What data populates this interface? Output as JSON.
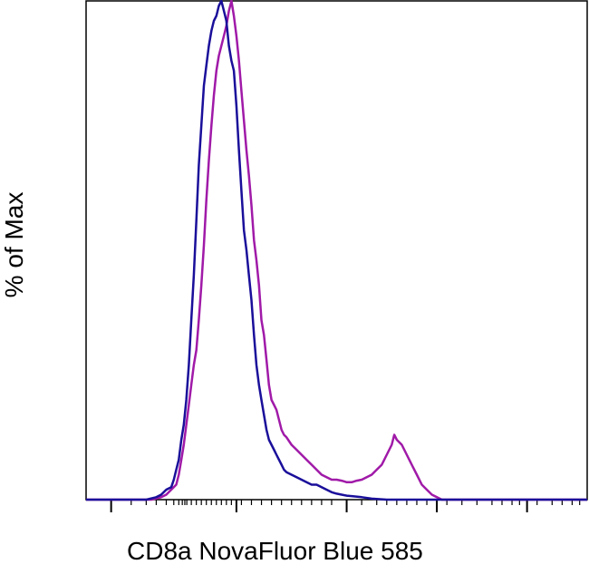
{
  "chart_data": {
    "type": "line",
    "title": "",
    "xlabel": "CD8a NovaFluor Blue 585",
    "ylabel": "% of Max",
    "x_scale": "log (biexponential)",
    "xlim": [
      0,
      100
    ],
    "ylim": [
      0,
      100
    ],
    "grid": false,
    "legend": "none",
    "series": [
      {
        "color": "#1a0f9a",
        "points": [
          [
            0,
            0
          ],
          [
            12,
            0
          ],
          [
            14,
            0.5
          ],
          [
            15,
            1
          ],
          [
            16,
            2
          ],
          [
            17,
            2.5
          ],
          [
            17.5,
            4
          ],
          [
            18,
            6
          ],
          [
            18.5,
            8
          ],
          [
            19,
            12
          ],
          [
            19.5,
            15
          ],
          [
            20,
            20
          ],
          [
            20.5,
            27
          ],
          [
            21,
            36
          ],
          [
            21.5,
            45
          ],
          [
            22,
            56
          ],
          [
            22.5,
            67
          ],
          [
            23,
            75
          ],
          [
            23.5,
            83
          ],
          [
            24,
            87
          ],
          [
            24.5,
            91
          ],
          [
            25,
            94
          ],
          [
            25.5,
            96
          ],
          [
            26,
            97
          ],
          [
            26.5,
            99
          ],
          [
            27,
            100
          ],
          [
            27.5,
            98
          ],
          [
            28,
            96
          ],
          [
            28.5,
            91
          ],
          [
            29,
            88
          ],
          [
            29.5,
            86
          ],
          [
            30,
            79
          ],
          [
            30.5,
            70
          ],
          [
            31,
            62
          ],
          [
            31.5,
            54
          ],
          [
            32,
            50
          ],
          [
            32.5,
            45
          ],
          [
            33,
            40
          ],
          [
            33.5,
            33
          ],
          [
            34,
            27
          ],
          [
            34.5,
            23
          ],
          [
            35,
            20
          ],
          [
            35.5,
            17
          ],
          [
            36,
            14
          ],
          [
            36.5,
            12
          ],
          [
            37,
            11
          ],
          [
            37.5,
            10
          ],
          [
            38,
            9
          ],
          [
            38.5,
            8
          ],
          [
            39,
            7
          ],
          [
            39.5,
            6
          ],
          [
            40,
            5.5
          ],
          [
            41,
            5
          ],
          [
            42,
            4.5
          ],
          [
            43,
            4
          ],
          [
            44,
            3.5
          ],
          [
            45,
            3
          ],
          [
            46,
            3
          ],
          [
            47,
            2.5
          ],
          [
            48,
            2
          ],
          [
            49,
            1.5
          ],
          [
            50,
            1.2
          ],
          [
            51,
            1
          ],
          [
            52,
            0.8
          ],
          [
            53,
            0.7
          ],
          [
            55,
            0.5
          ],
          [
            57,
            0.2
          ],
          [
            60,
            0
          ],
          [
            100,
            0
          ]
        ]
      },
      {
        "color": "#a01aa8",
        "points": [
          [
            0,
            0
          ],
          [
            13,
            0
          ],
          [
            15,
            0.5
          ],
          [
            16,
            1
          ],
          [
            17,
            2
          ],
          [
            18,
            3
          ],
          [
            18.5,
            5
          ],
          [
            19,
            8
          ],
          [
            19.5,
            11
          ],
          [
            20,
            15
          ],
          [
            20.5,
            19
          ],
          [
            21,
            23
          ],
          [
            21.5,
            27
          ],
          [
            22,
            30
          ],
          [
            22.5,
            36
          ],
          [
            23,
            43
          ],
          [
            23.5,
            51
          ],
          [
            24,
            60
          ],
          [
            24.5,
            68
          ],
          [
            25,
            75
          ],
          [
            25.5,
            81
          ],
          [
            26,
            86
          ],
          [
            26.5,
            89
          ],
          [
            27,
            91
          ],
          [
            27.5,
            93
          ],
          [
            28,
            95
          ],
          [
            28.5,
            98
          ],
          [
            29,
            100
          ],
          [
            29.5,
            97
          ],
          [
            30,
            93
          ],
          [
            30.5,
            88
          ],
          [
            31,
            82
          ],
          [
            31.5,
            76
          ],
          [
            32,
            70
          ],
          [
            32.5,
            65
          ],
          [
            33,
            59
          ],
          [
            33.5,
            52
          ],
          [
            34,
            48
          ],
          [
            34.5,
            43
          ],
          [
            35,
            36
          ],
          [
            35.5,
            33
          ],
          [
            36,
            28
          ],
          [
            36.5,
            23
          ],
          [
            37,
            20
          ],
          [
            37.5,
            19
          ],
          [
            38,
            18
          ],
          [
            38.5,
            16
          ],
          [
            39,
            14
          ],
          [
            39.5,
            13
          ],
          [
            40,
            12.5
          ],
          [
            41,
            11
          ],
          [
            42,
            10
          ],
          [
            43,
            9
          ],
          [
            44,
            8
          ],
          [
            45,
            7
          ],
          [
            46,
            6
          ],
          [
            47,
            5
          ],
          [
            48,
            4.5
          ],
          [
            49,
            4
          ],
          [
            50,
            4
          ],
          [
            51,
            3.8
          ],
          [
            52,
            3.5
          ],
          [
            53,
            3.5
          ],
          [
            54,
            3.8
          ],
          [
            55,
            4
          ],
          [
            56,
            4.5
          ],
          [
            57,
            5
          ],
          [
            58,
            6
          ],
          [
            59,
            7
          ],
          [
            60,
            9
          ],
          [
            61,
            11
          ],
          [
            61.5,
            13
          ],
          [
            62,
            12
          ],
          [
            63,
            11
          ],
          [
            64,
            9
          ],
          [
            65,
            7
          ],
          [
            66,
            5
          ],
          [
            67,
            3
          ],
          [
            68,
            2
          ],
          [
            69,
            1
          ],
          [
            70,
            0.5
          ],
          [
            71,
            0
          ],
          [
            100,
            0
          ]
        ]
      }
    ]
  }
}
